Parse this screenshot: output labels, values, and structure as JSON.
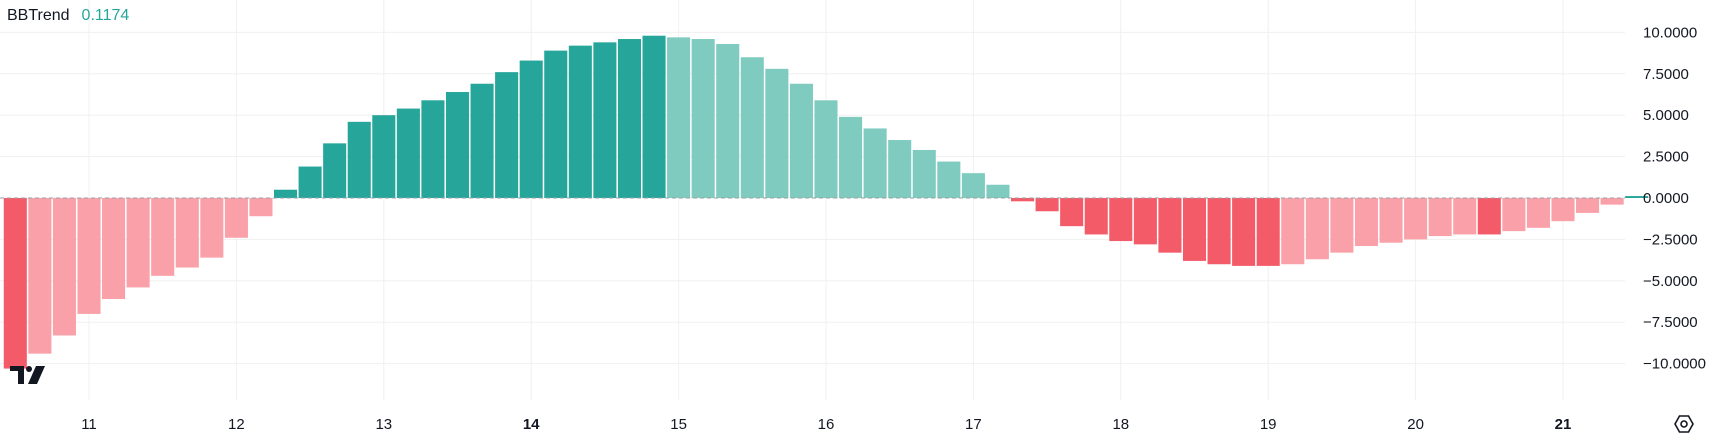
{
  "legend": {
    "name": "BBTrend",
    "value": "0.1174"
  },
  "colors": {
    "strong_pos": "#26a69a",
    "weak_pos": "#7fcbbf",
    "strong_neg": "#f45b69",
    "weak_neg": "#f9a0a8",
    "grid": "#f0f0f0",
    "zero": "#9aa0a6"
  },
  "chart_data": {
    "type": "bar",
    "title": "BBTrend",
    "ylim": [
      -11.5,
      11.5
    ],
    "yticks": [
      "10.0000",
      "7.5000",
      "5.0000",
      "2.5000",
      "0.0000",
      "−2.5000",
      "−5.0000",
      "−7.5000",
      "−10.0000"
    ],
    "ytick_values": [
      10,
      7.5,
      5,
      2.5,
      0,
      -2.5,
      -5,
      -7.5,
      -10
    ],
    "xticks": [
      {
        "label": "11",
        "day": 11,
        "bold": false
      },
      {
        "label": "12",
        "day": 12,
        "bold": false
      },
      {
        "label": "13",
        "day": 13,
        "bold": false
      },
      {
        "label": "14",
        "day": 14,
        "bold": true
      },
      {
        "label": "15",
        "day": 15,
        "bold": false
      },
      {
        "label": "16",
        "day": 16,
        "bold": false
      },
      {
        "label": "17",
        "day": 17,
        "bold": false
      },
      {
        "label": "18",
        "day": 18,
        "bold": false
      },
      {
        "label": "19",
        "day": 19,
        "bold": false
      },
      {
        "label": "20",
        "day": 20,
        "bold": false
      },
      {
        "label": "21",
        "day": 21,
        "bold": true
      }
    ],
    "bars_per_day": 6,
    "first_bar_day": 10.5,
    "values": [
      -10.3,
      -9.4,
      -8.3,
      -7.0,
      -6.1,
      -5.4,
      -4.7,
      -4.2,
      -3.6,
      -2.4,
      -1.1,
      0.5,
      1.9,
      3.3,
      4.6,
      5.0,
      5.4,
      5.9,
      6.4,
      6.9,
      7.6,
      8.3,
      8.9,
      9.2,
      9.4,
      9.6,
      9.8,
      9.7,
      9.6,
      9.3,
      8.5,
      7.8,
      6.9,
      5.9,
      4.9,
      4.2,
      3.5,
      2.9,
      2.2,
      1.5,
      0.8,
      -0.2,
      -0.8,
      -1.7,
      -2.2,
      -2.6,
      -2.8,
      -3.3,
      -3.8,
      -4.0,
      -4.1,
      -4.1,
      -4.0,
      -3.7,
      -3.3,
      -2.9,
      -2.7,
      -2.5,
      -2.3,
      -2.2,
      -2.2,
      -2.0,
      -1.8,
      -1.4,
      -0.9,
      -0.4,
      0.1174
    ]
  },
  "icons": {
    "logo": "tradingview-logo-icon",
    "settings": "settings-gear-icon"
  }
}
